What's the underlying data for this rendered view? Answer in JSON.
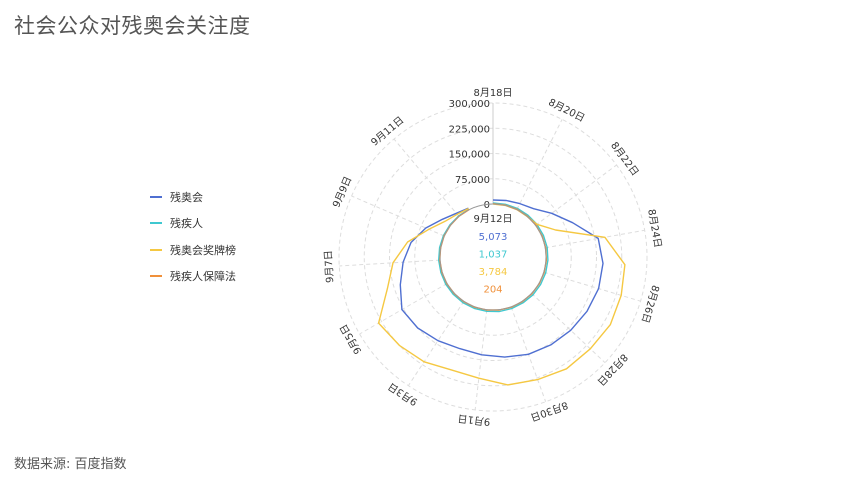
{
  "title": "社会公众对残奥会关注度",
  "source": "数据来源: 百度指数",
  "center_label": "9月12日",
  "colors": {
    "残奥会": "#4f6fd1",
    "残疾人": "#3fc8d0",
    "残奥会奖牌榜": "#f5c842",
    "残疾人保障法": "#f0903a"
  },
  "chart_data": {
    "type": "polar-line",
    "title": "社会公众对残奥会关注度",
    "radial_axis": {
      "range": [
        0,
        300000
      ],
      "ticks": [
        0,
        75000,
        150000,
        225000,
        300000
      ],
      "tick_labels": [
        "0",
        "75,000",
        "150,000",
        "225,000",
        "300,000"
      ]
    },
    "angular_axis": {
      "direction": "clockwise",
      "start": "top",
      "tick_labels": [
        "8月18日",
        "8月20日",
        "8月22日",
        "8月24日",
        "8月26日",
        "8月28日",
        "8月30日",
        "9月1日",
        "9月3日",
        "9月5日",
        "9月7日",
        "9月9日",
        "9月11日"
      ]
    },
    "categories": [
      "8月18日",
      "8月19日",
      "8月20日",
      "8月21日",
      "8月22日",
      "8月23日",
      "8月24日",
      "8月25日",
      "8月26日",
      "8月27日",
      "8月28日",
      "8月29日",
      "8月30日",
      "8月31日",
      "9月1日",
      "9月2日",
      "9月3日",
      "9月4日",
      "9月5日",
      "9月6日",
      "9月7日",
      "9月8日",
      "9月9日",
      "9月10日",
      "9月11日",
      "9月12日"
    ],
    "series": [
      {
        "name": "残奥会",
        "values": [
          12000,
          15000,
          20000,
          30000,
          60000,
          100000,
          160000,
          170000,
          170000,
          165000,
          160000,
          155000,
          150000,
          142000,
          135000,
          132000,
          140000,
          150000,
          155000,
          130000,
          110000,
          90000,
          60000,
          30000,
          12000,
          5073
        ]
      },
      {
        "name": "残疾人",
        "values": [
          3000,
          3500,
          4000,
          4500,
          5000,
          5500,
          6000,
          6000,
          6000,
          6000,
          6000,
          5500,
          5500,
          5500,
          5000,
          5000,
          5000,
          4500,
          4500,
          4000,
          4000,
          3500,
          3000,
          2000,
          1500,
          1037
        ]
      },
      {
        "name": "残奥会奖牌榜",
        "values": [
          0,
          0,
          0,
          0,
          5000,
          45000,
          180000,
          235000,
          240000,
          245000,
          240000,
          240000,
          230000,
          225000,
          205000,
          200000,
          215000,
          225000,
          235000,
          170000,
          140000,
          100000,
          50000,
          20000,
          8000,
          3784
        ]
      },
      {
        "name": "残疾人保障法",
        "values": [
          1000,
          1000,
          1200,
          1200,
          1300,
          1300,
          1500,
          1500,
          1400,
          1400,
          1300,
          1300,
          1200,
          1200,
          1100,
          1100,
          1000,
          1000,
          900,
          900,
          800,
          700,
          600,
          500,
          300,
          204
        ]
      }
    ],
    "legend": "left",
    "grid": true,
    "tooltip_category": "9月12日"
  }
}
